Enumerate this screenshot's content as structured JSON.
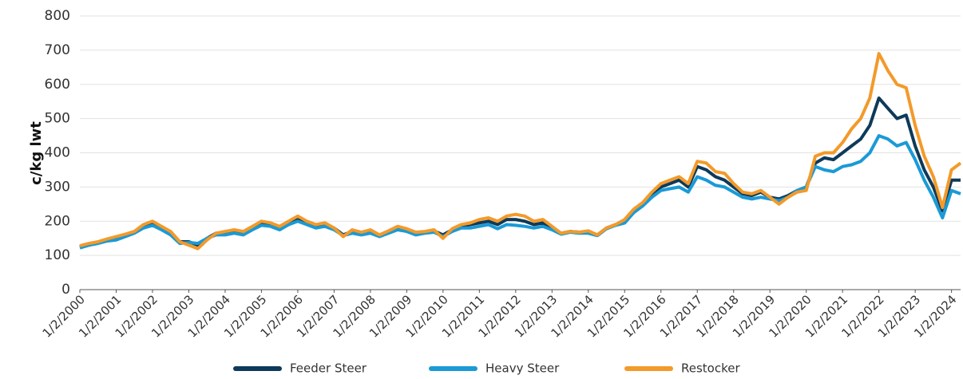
{
  "chart_data": {
    "type": "line",
    "y_label": "c/kg lwt",
    "x": [
      2000,
      2000.25,
      2000.5,
      2000.75,
      2001,
      2001.25,
      2001.5,
      2001.75,
      2002,
      2002.25,
      2002.5,
      2002.75,
      2003,
      2003.25,
      2003.5,
      2003.75,
      2004,
      2004.25,
      2004.5,
      2004.75,
      2005,
      2005.25,
      2005.5,
      2005.75,
      2006,
      2006.25,
      2006.5,
      2006.75,
      2007,
      2007.25,
      2007.5,
      2007.75,
      2008,
      2008.25,
      2008.5,
      2008.75,
      2009,
      2009.25,
      2009.5,
      2009.75,
      2010,
      2010.25,
      2010.5,
      2010.75,
      2011,
      2011.25,
      2011.5,
      2011.75,
      2012,
      2012.25,
      2012.5,
      2012.75,
      2013,
      2013.25,
      2013.5,
      2013.75,
      2014,
      2014.25,
      2014.5,
      2014.75,
      2015,
      2015.25,
      2015.5,
      2015.75,
      2016,
      2016.25,
      2016.5,
      2016.75,
      2017,
      2017.25,
      2017.5,
      2017.75,
      2018,
      2018.25,
      2018.5,
      2018.75,
      2019,
      2019.25,
      2019.5,
      2019.75,
      2020,
      2020.25,
      2020.5,
      2020.75,
      2021,
      2021.25,
      2021.5,
      2021.75,
      2022,
      2022.25,
      2022.5,
      2022.75,
      2023,
      2023.25,
      2023.5,
      2023.75,
      2024,
      2024.25
    ],
    "series": [
      {
        "name": "Feeder Steer",
        "color": "#0e3a5a",
        "values": [
          125,
          132,
          138,
          145,
          150,
          160,
          168,
          185,
          195,
          180,
          165,
          140,
          140,
          130,
          150,
          165,
          165,
          172,
          168,
          180,
          195,
          190,
          180,
          195,
          210,
          195,
          185,
          190,
          180,
          160,
          170,
          165,
          170,
          160,
          170,
          180,
          175,
          165,
          168,
          172,
          160,
          175,
          185,
          190,
          195,
          200,
          190,
          205,
          205,
          200,
          190,
          195,
          180,
          165,
          170,
          168,
          170,
          160,
          180,
          190,
          200,
          230,
          250,
          280,
          300,
          310,
          320,
          300,
          360,
          350,
          330,
          320,
          300,
          280,
          275,
          285,
          270,
          265,
          275,
          290,
          300,
          370,
          385,
          380,
          400,
          420,
          440,
          480,
          560,
          530,
          500,
          510,
          420,
          350,
          300,
          230,
          320,
          320
        ]
      },
      {
        "name": "Heavy Steer",
        "color": "#1a9ad6",
        "values": [
          122,
          130,
          135,
          142,
          145,
          155,
          165,
          180,
          188,
          175,
          160,
          135,
          138,
          135,
          150,
          160,
          160,
          165,
          160,
          175,
          188,
          185,
          175,
          190,
          200,
          190,
          180,
          185,
          175,
          158,
          165,
          160,
          165,
          155,
          165,
          175,
          170,
          160,
          165,
          168,
          155,
          170,
          180,
          180,
          185,
          190,
          178,
          190,
          188,
          185,
          180,
          185,
          175,
          162,
          168,
          165,
          165,
          158,
          178,
          188,
          195,
          225,
          245,
          270,
          290,
          295,
          300,
          285,
          330,
          320,
          305,
          300,
          285,
          270,
          265,
          270,
          265,
          260,
          270,
          290,
          300,
          360,
          350,
          345,
          360,
          365,
          375,
          400,
          450,
          440,
          420,
          430,
          380,
          320,
          270,
          210,
          290,
          280
        ]
      },
      {
        "name": "Restocker",
        "color": "#f39a2a",
        "values": [
          128,
          135,
          140,
          148,
          155,
          162,
          170,
          190,
          200,
          185,
          170,
          140,
          130,
          120,
          145,
          165,
          170,
          175,
          170,
          185,
          200,
          195,
          185,
          200,
          215,
          200,
          190,
          195,
          180,
          155,
          175,
          168,
          175,
          160,
          172,
          185,
          178,
          168,
          170,
          175,
          150,
          178,
          190,
          195,
          205,
          210,
          200,
          215,
          220,
          215,
          200,
          205,
          185,
          165,
          170,
          168,
          172,
          160,
          180,
          190,
          205,
          235,
          255,
          285,
          310,
          320,
          330,
          310,
          375,
          370,
          345,
          340,
          310,
          285,
          280,
          290,
          270,
          250,
          270,
          285,
          290,
          390,
          400,
          400,
          430,
          470,
          500,
          560,
          690,
          640,
          600,
          590,
          480,
          390,
          330,
          240,
          350,
          370
        ]
      }
    ],
    "xlim": [
      2000,
      2024.25
    ],
    "xticks": [
      {
        "value": 2000,
        "label": "1/2/2000"
      },
      {
        "value": 2001,
        "label": "1/2/2001"
      },
      {
        "value": 2002,
        "label": "1/2/2002"
      },
      {
        "value": 2003,
        "label": "1/2/2003"
      },
      {
        "value": 2004,
        "label": "1/2/2004"
      },
      {
        "value": 2005,
        "label": "1/2/2005"
      },
      {
        "value": 2006,
        "label": "1/2/2006"
      },
      {
        "value": 2007,
        "label": "1/2/2007"
      },
      {
        "value": 2008,
        "label": "1/2/2008"
      },
      {
        "value": 2009,
        "label": "1/2/2009"
      },
      {
        "value": 2010,
        "label": "1/2/2010"
      },
      {
        "value": 2011,
        "label": "1/2/2011"
      },
      {
        "value": 2012,
        "label": "1/2/2012"
      },
      {
        "value": 2013,
        "label": "1/2/2013"
      },
      {
        "value": 2014,
        "label": "1/2/2014"
      },
      {
        "value": 2015,
        "label": "1/2/2015"
      },
      {
        "value": 2016,
        "label": "1/2/2016"
      },
      {
        "value": 2017,
        "label": "1/2/2017"
      },
      {
        "value": 2018,
        "label": "1/2/2018"
      },
      {
        "value": 2019,
        "label": "1/2/2019"
      },
      {
        "value": 2020,
        "label": "1/2/2020"
      },
      {
        "value": 2021,
        "label": "1/2/2021"
      },
      {
        "value": 2022,
        "label": "1/2/2022"
      },
      {
        "value": 2023,
        "label": "1/2/2023"
      },
      {
        "value": 2024,
        "label": "1/2/2024"
      }
    ],
    "ylim": [
      0,
      800
    ],
    "yticks": [
      0,
      100,
      200,
      300,
      400,
      500,
      600,
      700,
      800
    ],
    "grid": true,
    "legend": "bottom"
  }
}
